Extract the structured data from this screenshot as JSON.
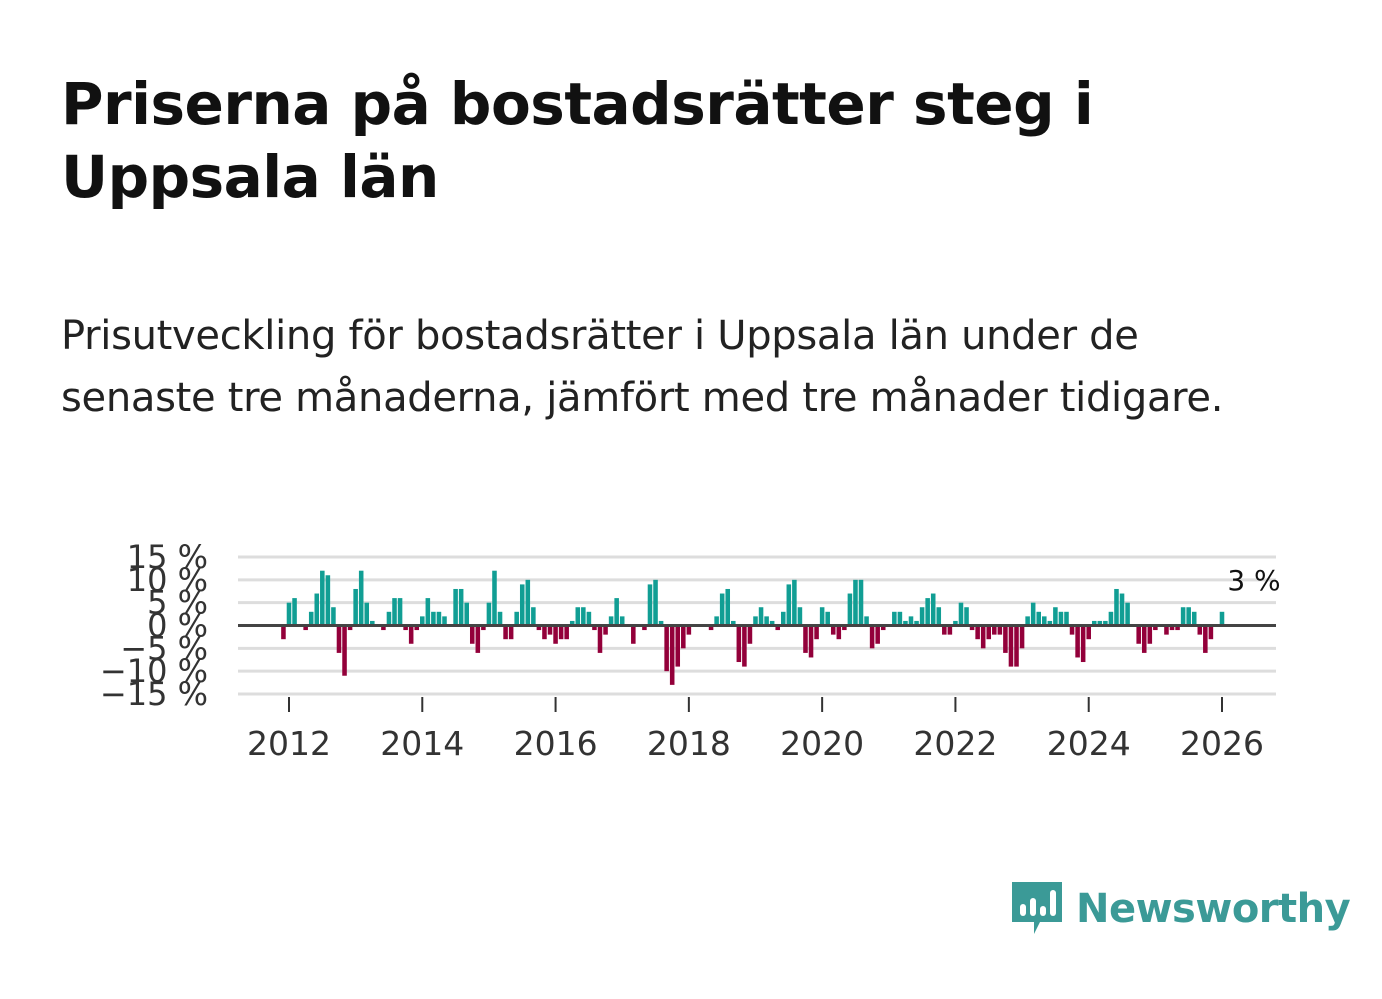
{
  "title": "Priserna på bostadsrätter steg i Uppsala län",
  "subtitle": "Prisutveckling för bostadsrätter i Uppsala län under de senaste tre månaderna, jämfört med tre månader tidigare.",
  "logo": {
    "name": "Newsworthy",
    "icon": "newsworthy-logo-icon",
    "color": "#3b9a97"
  },
  "colors": {
    "positive": "#119e94",
    "negative": "#93003a",
    "grid": "#dddddd",
    "zero": "#444444"
  },
  "chart_data": {
    "type": "bar",
    "title": "Priserna på bostadsrätter steg i Uppsala län",
    "xlabel": "",
    "ylabel": "",
    "ylim": [
      -15,
      15
    ],
    "y_ticks": [
      -15,
      -10,
      -5,
      0,
      5,
      10,
      15
    ],
    "y_tick_labels": [
      "−15 %",
      "−10 %",
      "−5 %",
      "0 %",
      "5 %",
      "10 %",
      "15 %"
    ],
    "x_ticks": [
      2012,
      2014,
      2016,
      2018,
      2020,
      2022,
      2024,
      2026
    ],
    "x_tick_labels": [
      "2012",
      "2014",
      "2016",
      "2018",
      "2020",
      "2022",
      "2024",
      "2026"
    ],
    "start": "2011-12",
    "frequency": "monthly",
    "last_value_label": "3 %",
    "values": [
      -3,
      5,
      6,
      0,
      -1,
      3,
      7,
      12,
      11,
      4,
      -6,
      -11,
      -1,
      8,
      12,
      5,
      1,
      0,
      -1,
      3,
      6,
      6,
      -1,
      -4,
      -1,
      2,
      6,
      3,
      3,
      2,
      0,
      8,
      8,
      5,
      -4,
      -6,
      -1,
      5,
      12,
      3,
      -3,
      -3,
      3,
      9,
      10,
      4,
      -1,
      -3,
      -2,
      -4,
      -3,
      -3,
      1,
      4,
      4,
      3,
      -1,
      -6,
      -2,
      2,
      6,
      2,
      0,
      -4,
      0,
      -1,
      9,
      10,
      1,
      -10,
      -13,
      -9,
      -5,
      -2,
      0,
      0,
      0,
      -1,
      2,
      7,
      8,
      1,
      -8,
      -9,
      -4,
      2,
      4,
      2,
      1,
      -1,
      3,
      9,
      10,
      4,
      -6,
      -7,
      -3,
      4,
      3,
      -2,
      -3,
      -1,
      7,
      10,
      10,
      2,
      -5,
      -4,
      -1,
      0,
      3,
      3,
      1,
      2,
      1,
      4,
      6,
      7,
      4,
      -2,
      -2,
      1,
      5,
      4,
      -1,
      -3,
      -5,
      -3,
      -2,
      -2,
      -6,
      -9,
      -9,
      -5,
      2,
      5,
      3,
      2,
      1,
      4,
      3,
      3,
      -2,
      -7,
      -8,
      -3,
      1,
      1,
      1,
      3,
      8,
      7,
      5,
      0,
      -4,
      -6,
      -4,
      -1,
      0,
      -2,
      -1,
      -1,
      4,
      4,
      3,
      -2,
      -6,
      -3,
      0,
      3
    ]
  }
}
